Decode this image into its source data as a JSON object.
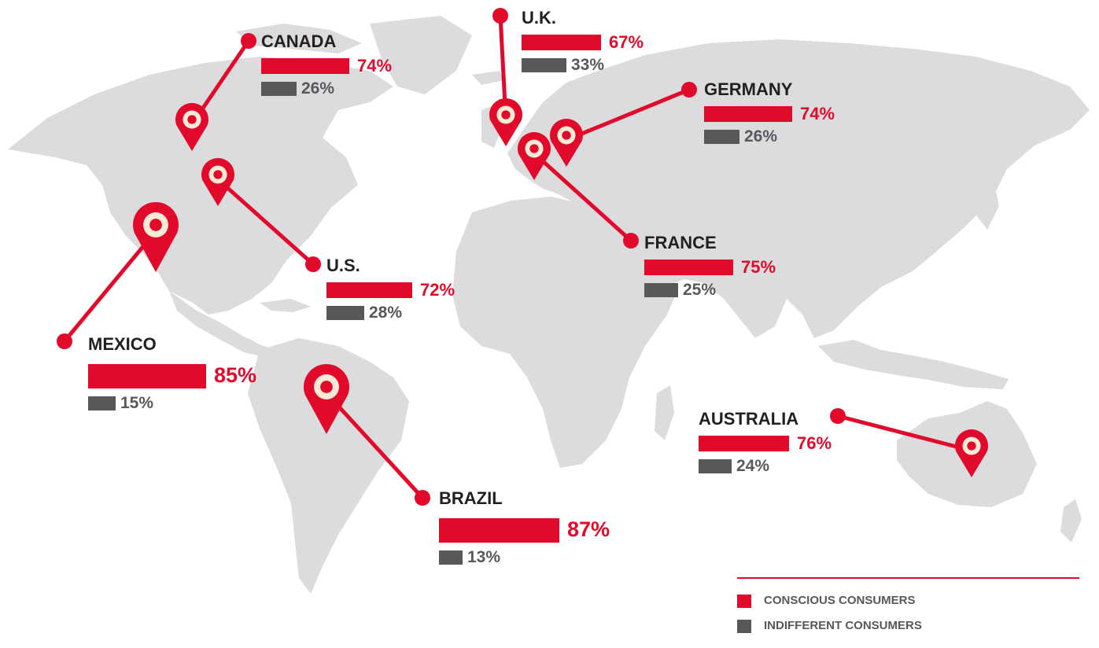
{
  "colors": {
    "conscious": "#e20a2a",
    "indifferent": "#58585b",
    "land": "#dcdcdf",
    "text": "#231f20"
  },
  "icons": {
    "marker": "map-pin-icon",
    "connector_end": "dot-icon"
  },
  "countries": [
    {
      "id": "canada",
      "name": "CANADA",
      "conscious": 74,
      "indifferent": 26,
      "conscious_label": "74%",
      "indifferent_label": "26%"
    },
    {
      "id": "us",
      "name": "U.S.",
      "conscious": 72,
      "indifferent": 28,
      "conscious_label": "72%",
      "indifferent_label": "28%"
    },
    {
      "id": "mexico",
      "name": "MEXICO",
      "conscious": 85,
      "indifferent": 15,
      "conscious_label": "85%",
      "indifferent_label": "15%"
    },
    {
      "id": "brazil",
      "name": "BRAZIL",
      "conscious": 87,
      "indifferent": 13,
      "conscious_label": "87%",
      "indifferent_label": "13%"
    },
    {
      "id": "uk",
      "name": "U.K.",
      "conscious": 67,
      "indifferent": 33,
      "conscious_label": "67%",
      "indifferent_label": "33%"
    },
    {
      "id": "germany",
      "name": "GERMANY",
      "conscious": 74,
      "indifferent": 26,
      "conscious_label": "74%",
      "indifferent_label": "26%"
    },
    {
      "id": "france",
      "name": "FRANCE",
      "conscious": 75,
      "indifferent": 25,
      "conscious_label": "75%",
      "indifferent_label": "25%"
    },
    {
      "id": "australia",
      "name": "AUSTRALIA",
      "conscious": 76,
      "indifferent": 24,
      "conscious_label": "76%",
      "indifferent_label": "24%"
    }
  ],
  "legend": {
    "conscious_label": "CONSCIOUS CONSUMERS",
    "indifferent_label": "INDIFFERENT CONSUMERS"
  }
}
